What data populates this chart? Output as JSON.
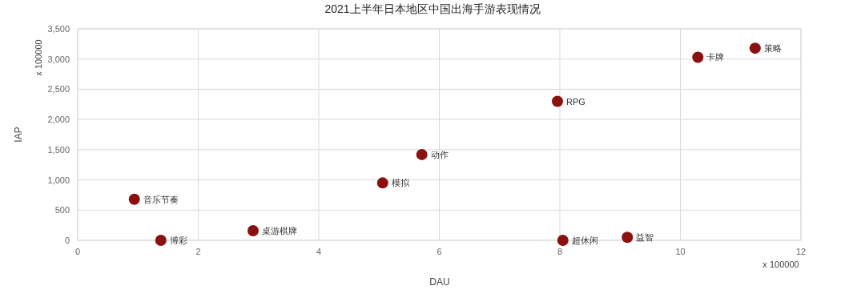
{
  "chart_data": {
    "type": "scatter",
    "title": "2021上半年日本地区中国出海手游表现情况",
    "xlabel": "DAU",
    "ylabel": "IAP",
    "annotations": [
      "x 100000",
      "x 100000"
    ],
    "xlim": [
      0,
      12
    ],
    "xticks": [
      0,
      2,
      4,
      6,
      8,
      10,
      12
    ],
    "ylim": [
      0,
      3500
    ],
    "yticks": [
      0,
      500,
      {
        "value": 1000,
        "label": "1,000"
      },
      {
        "value": 1500,
        "label": "1,500"
      },
      {
        "value": 2000,
        "label": "2,000"
      },
      {
        "value": 2500,
        "label": "2,500"
      },
      {
        "value": 3000,
        "label": "3,000"
      },
      {
        "value": 3500,
        "label": "3,500"
      }
    ],
    "grid": true,
    "marker": "circle",
    "series": [
      {
        "name": "音乐节奏",
        "color": "#8b1010",
        "x": [
          0.94
        ],
        "values": [
          680
        ]
      },
      {
        "name": "博彩",
        "color": "#8b1010",
        "x": [
          1.38
        ],
        "values": [
          0
        ]
      },
      {
        "name": "桌游棋牌",
        "color": "#8b1010",
        "x": [
          2.91
        ],
        "values": [
          160
        ]
      },
      {
        "name": "模拟",
        "color": "#8b1010",
        "x": [
          5.06
        ],
        "values": [
          950
        ]
      },
      {
        "name": "动作",
        "color": "#8b1010",
        "x": [
          5.71
        ],
        "values": [
          1420
        ]
      },
      {
        "name": "RPG",
        "color": "#8b1010",
        "x": [
          7.96
        ],
        "values": [
          2300
        ]
      },
      {
        "name": "超休闲",
        "color": "#8b1010",
        "x": [
          8.05
        ],
        "values": [
          0
        ]
      },
      {
        "name": "益智",
        "color": "#8b1010",
        "x": [
          9.12
        ],
        "values": [
          50
        ]
      },
      {
        "name": "卡牌",
        "color": "#8b1010",
        "x": [
          10.29
        ],
        "values": [
          3030
        ]
      },
      {
        "name": "策略",
        "color": "#8b1010",
        "x": [
          11.24
        ],
        "values": [
          3180
        ]
      }
    ]
  }
}
